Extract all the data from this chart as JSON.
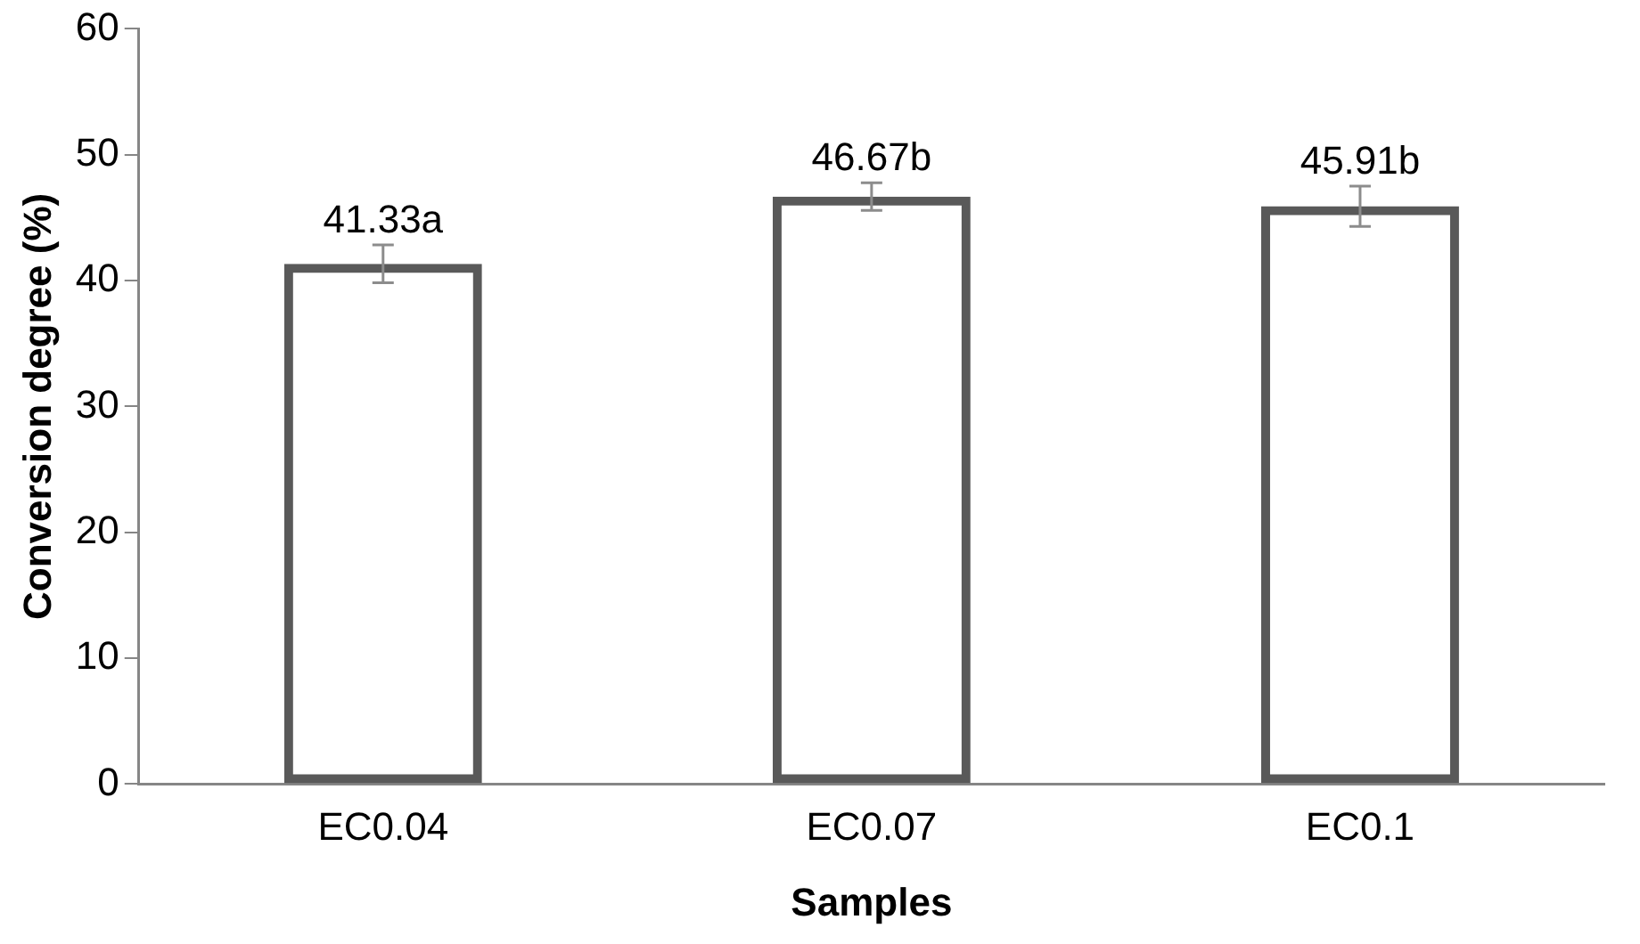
{
  "chart_data": {
    "type": "bar",
    "xlabel": "Samples",
    "ylabel": "Conversion degree (%)",
    "categories": [
      "EC0.04",
      "EC0.07",
      "EC0.1"
    ],
    "series": [
      {
        "color": "#595959",
        "values": [
          41.33,
          46.67,
          45.91
        ],
        "errors": [
          1.5,
          1.1,
          1.6
        ],
        "value_labels": [
          "41.33a",
          "46.67b",
          "45.91b"
        ]
      }
    ],
    "ylim": [
      0,
      60
    ],
    "yticks": [
      0,
      10,
      20,
      30,
      40,
      50,
      60
    ],
    "grid": false,
    "legend": false
  }
}
